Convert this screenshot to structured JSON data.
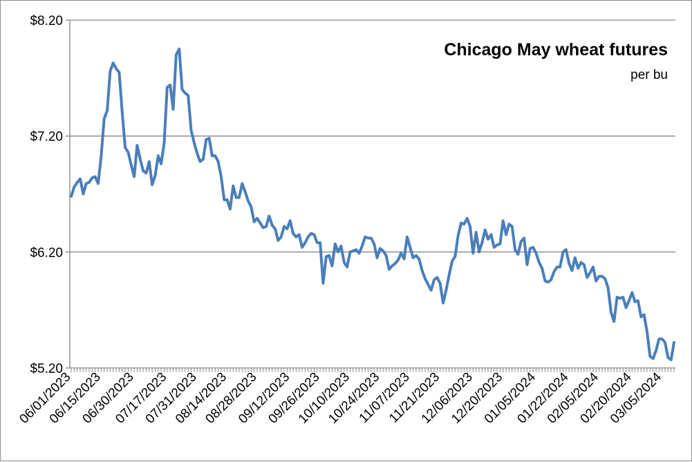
{
  "chart_data": {
    "type": "line",
    "title": "Chicago May wheat futures",
    "subtitle": "per bu",
    "xlabel": "",
    "ylabel": "",
    "ylim": [
      5.2,
      8.2
    ],
    "yticks": [
      "$5.20",
      "$6.20",
      "$7.20",
      "$8.20"
    ],
    "ytick_values": [
      5.2,
      6.2,
      7.2,
      8.2
    ],
    "xtick_labels": [
      "06/01/2023",
      "06/15/2023",
      "06/30/2023",
      "07/17/2023",
      "07/31/2023",
      "08/14/2023",
      "08/28/2023",
      "09/12/2023",
      "09/26/2023",
      "10/10/2023",
      "10/24/2023",
      "11/07/2023",
      "11/21/2023",
      "12/06/2023",
      "12/20/2023",
      "01/05/2024",
      "01/22/2024",
      "02/05/2024",
      "02/20/2024",
      "03/05/2024"
    ],
    "xtick_index": [
      0,
      10,
      21,
      32,
      42,
      52,
      62,
      73,
      83,
      93,
      103,
      113,
      123,
      134,
      144,
      155,
      166,
      176,
      187,
      197
    ],
    "grid": true,
    "legend": "none",
    "series": [
      {
        "name": "Chicago May wheat futures",
        "color": "#4a7ebb",
        "values": [
          6.68,
          6.76,
          6.8,
          6.83,
          6.7,
          6.79,
          6.8,
          6.84,
          6.85,
          6.79,
          7.03,
          7.35,
          7.42,
          7.76,
          7.83,
          7.78,
          7.75,
          7.4,
          7.1,
          7.06,
          6.95,
          6.85,
          7.12,
          7.0,
          6.9,
          6.88,
          6.98,
          6.78,
          6.86,
          7.03,
          6.96,
          7.14,
          7.62,
          7.64,
          7.43,
          7.9,
          7.95,
          7.6,
          7.57,
          7.55,
          7.25,
          7.14,
          7.05,
          6.98,
          7.0,
          7.17,
          7.18,
          7.03,
          7.03,
          6.98,
          6.85,
          6.65,
          6.65,
          6.57,
          6.77,
          6.67,
          6.67,
          6.79,
          6.72,
          6.64,
          6.59,
          6.46,
          6.49,
          6.45,
          6.41,
          6.42,
          6.51,
          6.43,
          6.4,
          6.3,
          6.33,
          6.42,
          6.4,
          6.47,
          6.36,
          6.33,
          6.35,
          6.24,
          6.28,
          6.33,
          6.36,
          6.35,
          6.28,
          6.28,
          5.93,
          6.16,
          6.17,
          6.08,
          6.27,
          6.2,
          6.25,
          6.11,
          6.07,
          6.2,
          6.21,
          6.22,
          6.19,
          6.25,
          6.33,
          6.32,
          6.32,
          6.27,
          6.15,
          6.23,
          6.21,
          6.17,
          6.05,
          6.08,
          6.1,
          6.13,
          6.19,
          6.14,
          6.33,
          6.24,
          6.15,
          6.17,
          6.14,
          6.04,
          5.97,
          5.92,
          5.87,
          5.96,
          5.98,
          5.93,
          5.76,
          5.87,
          6.0,
          6.12,
          6.16,
          6.34,
          6.45,
          6.44,
          6.49,
          6.42,
          6.19,
          6.37,
          6.2,
          6.28,
          6.39,
          6.31,
          6.35,
          6.24,
          6.26,
          6.27,
          6.47,
          6.35,
          6.44,
          6.42,
          6.22,
          6.18,
          6.29,
          6.32,
          6.09,
          6.23,
          6.24,
          6.19,
          6.11,
          6.06,
          5.95,
          5.94,
          5.96,
          6.03,
          6.07,
          6.07,
          6.2,
          6.22,
          6.1,
          6.04,
          6.15,
          6.06,
          6.11,
          6.09,
          5.98,
          6.02,
          6.07,
          5.95,
          5.99,
          5.99,
          5.97,
          5.89,
          5.68,
          5.6,
          5.81,
          5.8,
          5.81,
          5.72,
          5.78,
          5.85,
          5.77,
          5.78,
          5.64,
          5.66,
          5.51,
          5.3,
          5.28,
          5.35,
          5.45,
          5.45,
          5.42,
          5.29,
          5.27,
          5.42
        ]
      }
    ]
  }
}
